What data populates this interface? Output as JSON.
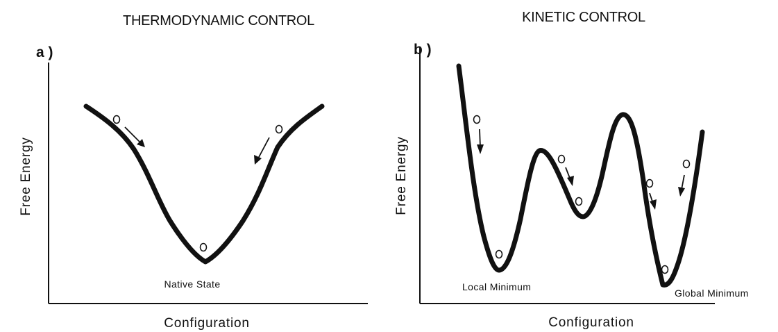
{
  "panels": [
    {
      "id": "a",
      "title": "THERMODYNAMIC CONTROL",
      "label": "a )",
      "y_axis_label": "Free Energy",
      "x_axis_label": "Configuration",
      "annotations": [
        "Native State"
      ]
    },
    {
      "id": "b",
      "title": "KINETIC CONTROL",
      "label": "b )",
      "y_axis_label": "Free Energy",
      "x_axis_label": "Configuration",
      "annotations": [
        "Local Minimum",
        "Global Minimum"
      ]
    }
  ],
  "colors": {
    "ink": "#111111",
    "background": "#ffffff"
  }
}
